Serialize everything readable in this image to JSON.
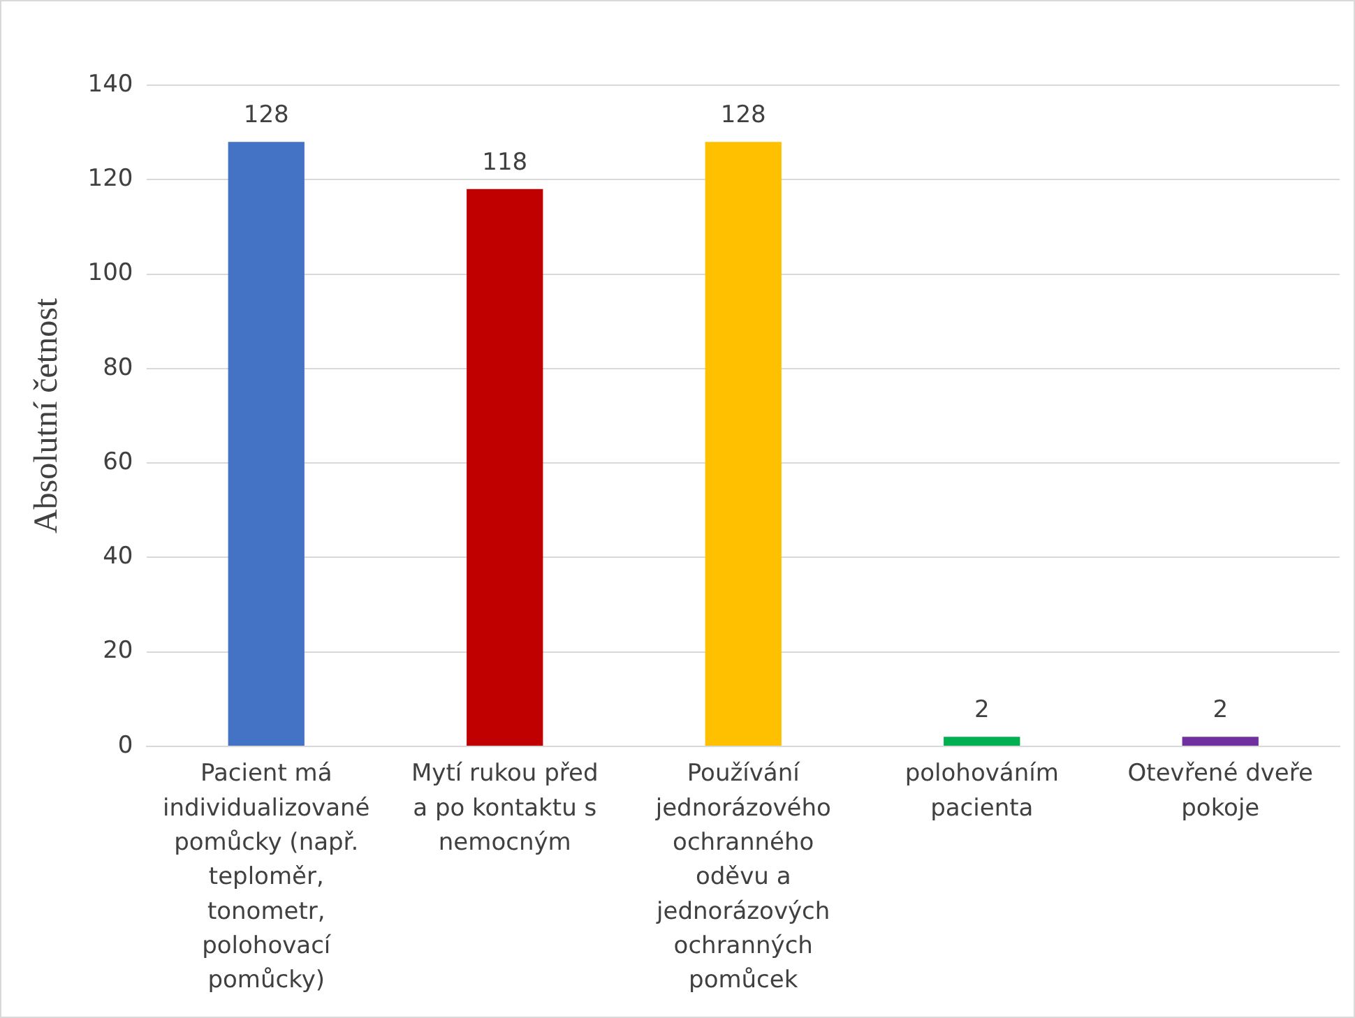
{
  "chart_data": {
    "type": "bar",
    "ylabel": "Absolutní četnost",
    "categories": [
      "Pacient má individualizované pomůcky (např. teploměr, tonometr, polohovací pomůcky)",
      "Mytí rukou před a po kontaktu s nemocným",
      "Používání jednorázového ochranného oděvu a jednorázových ochranných pomůcek",
      "polohováním pacienta",
      "Otevřené dveře pokoje"
    ],
    "values": [
      128,
      118,
      128,
      2,
      2
    ],
    "colors": [
      "#4472c4",
      "#c00000",
      "#ffc000",
      "#00b050",
      "#7030a0"
    ],
    "ylim": [
      0,
      140
    ],
    "yticks": [
      0,
      20,
      40,
      60,
      80,
      100,
      120,
      140
    ],
    "grid": "y",
    "data_labels": true,
    "legend": false
  }
}
